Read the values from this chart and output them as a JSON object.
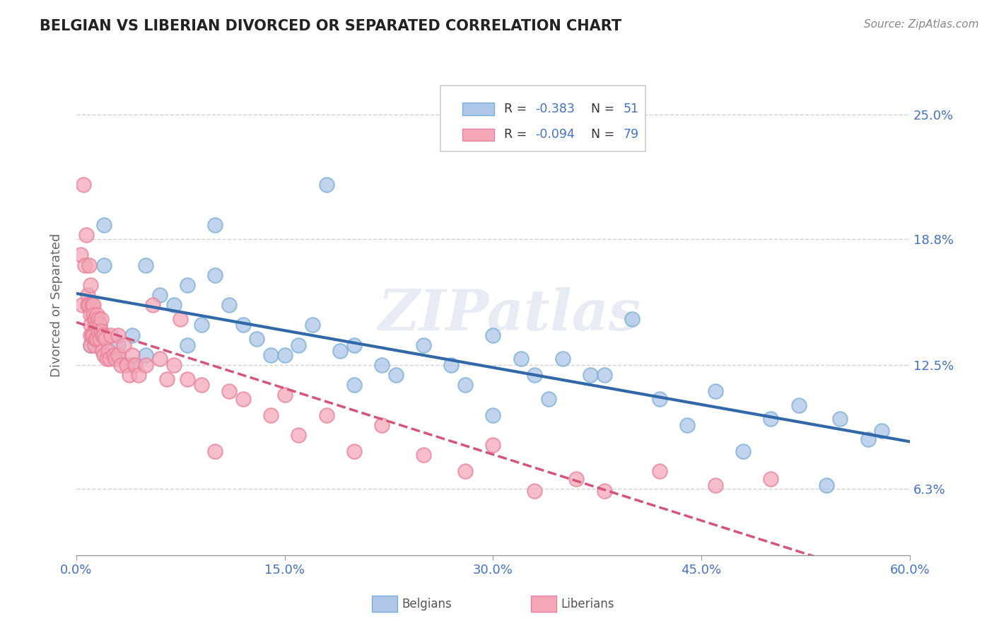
{
  "title": "BELGIAN VS LIBERIAN DIVORCED OR SEPARATED CORRELATION CHART",
  "source": "Source: ZipAtlas.com",
  "ylabel": "Divorced or Separated",
  "xlim": [
    0.0,
    0.6
  ],
  "ylim": [
    0.03,
    0.28
  ],
  "yticks": [
    0.063,
    0.125,
    0.188,
    0.25
  ],
  "ytick_labels": [
    "6.3%",
    "12.5%",
    "18.8%",
    "25.0%"
  ],
  "xticks": [
    0.0,
    0.15,
    0.3,
    0.45,
    0.6
  ],
  "xtick_labels": [
    "0.0%",
    "15.0%",
    "30.0%",
    "45.0%",
    "60.0%"
  ],
  "blue_R": -0.383,
  "blue_N": 51,
  "pink_R": -0.094,
  "pink_N": 79,
  "blue_color": "#aec6e8",
  "pink_color": "#f4a7b9",
  "blue_marker_edge": "#7bafd4",
  "pink_marker_edge": "#e8829a",
  "blue_line_color": "#3068a8",
  "pink_line_color": "#d4547a",
  "title_color": "#222222",
  "axis_label_color": "#666666",
  "tick_color": "#4472c4",
  "legend_text_color": "#333333",
  "legend_num_color": "#4472c4",
  "watermark": "ZIPatlas",
  "background_color": "#ffffff",
  "grid_color": "#cccccc",
  "blue_x": [
    0.01,
    0.02,
    0.02,
    0.03,
    0.03,
    0.04,
    0.04,
    0.05,
    0.05,
    0.06,
    0.07,
    0.08,
    0.08,
    0.09,
    0.1,
    0.1,
    0.11,
    0.12,
    0.13,
    0.14,
    0.15,
    0.16,
    0.17,
    0.18,
    0.19,
    0.2,
    0.22,
    0.23,
    0.25,
    0.27,
    0.28,
    0.3,
    0.32,
    0.33,
    0.35,
    0.37,
    0.38,
    0.4,
    0.42,
    0.44,
    0.46,
    0.48,
    0.5,
    0.52,
    0.54,
    0.55,
    0.57,
    0.58,
    0.3,
    0.34,
    0.2
  ],
  "blue_y": [
    0.135,
    0.195,
    0.175,
    0.135,
    0.13,
    0.14,
    0.125,
    0.175,
    0.13,
    0.16,
    0.155,
    0.165,
    0.135,
    0.145,
    0.195,
    0.17,
    0.155,
    0.145,
    0.138,
    0.13,
    0.13,
    0.135,
    0.145,
    0.215,
    0.132,
    0.135,
    0.125,
    0.12,
    0.135,
    0.125,
    0.115,
    0.14,
    0.128,
    0.12,
    0.128,
    0.12,
    0.12,
    0.148,
    0.108,
    0.095,
    0.112,
    0.082,
    0.098,
    0.105,
    0.065,
    0.098,
    0.088,
    0.092,
    0.1,
    0.108,
    0.115
  ],
  "pink_x": [
    0.003,
    0.004,
    0.005,
    0.006,
    0.007,
    0.008,
    0.008,
    0.009,
    0.009,
    0.01,
    0.01,
    0.01,
    0.01,
    0.01,
    0.011,
    0.011,
    0.012,
    0.012,
    0.012,
    0.013,
    0.013,
    0.013,
    0.014,
    0.014,
    0.015,
    0.015,
    0.015,
    0.016,
    0.016,
    0.017,
    0.017,
    0.018,
    0.018,
    0.019,
    0.019,
    0.02,
    0.02,
    0.021,
    0.022,
    0.023,
    0.024,
    0.025,
    0.027,
    0.028,
    0.03,
    0.03,
    0.032,
    0.034,
    0.036,
    0.038,
    0.04,
    0.042,
    0.045,
    0.05,
    0.055,
    0.06,
    0.065,
    0.07,
    0.075,
    0.08,
    0.09,
    0.1,
    0.11,
    0.12,
    0.14,
    0.15,
    0.16,
    0.18,
    0.2,
    0.22,
    0.25,
    0.28,
    0.3,
    0.33,
    0.36,
    0.38,
    0.42,
    0.46,
    0.5
  ],
  "pink_y": [
    0.18,
    0.155,
    0.215,
    0.175,
    0.19,
    0.16,
    0.155,
    0.175,
    0.155,
    0.165,
    0.15,
    0.145,
    0.14,
    0.135,
    0.155,
    0.14,
    0.155,
    0.15,
    0.14,
    0.148,
    0.145,
    0.135,
    0.148,
    0.138,
    0.15,
    0.145,
    0.138,
    0.148,
    0.142,
    0.145,
    0.138,
    0.148,
    0.142,
    0.14,
    0.132,
    0.14,
    0.13,
    0.138,
    0.128,
    0.132,
    0.128,
    0.14,
    0.13,
    0.128,
    0.13,
    0.14,
    0.125,
    0.135,
    0.125,
    0.12,
    0.13,
    0.125,
    0.12,
    0.125,
    0.155,
    0.128,
    0.118,
    0.125,
    0.148,
    0.118,
    0.115,
    0.082,
    0.112,
    0.108,
    0.1,
    0.11,
    0.09,
    0.1,
    0.082,
    0.095,
    0.08,
    0.072,
    0.085,
    0.062,
    0.068,
    0.062,
    0.072,
    0.065,
    0.068
  ]
}
